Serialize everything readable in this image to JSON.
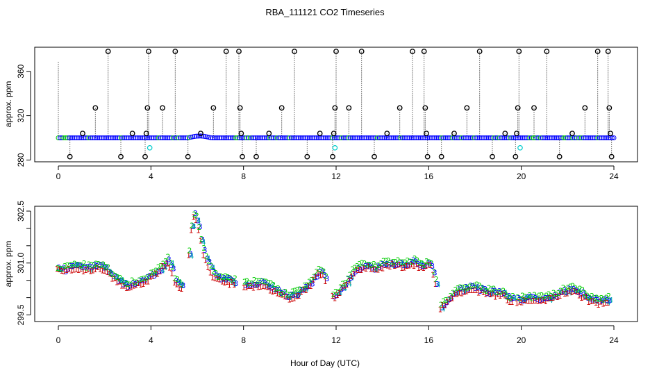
{
  "chart_data": [
    {
      "type": "scatter",
      "title": "RBA_111121  CO2 Timeseries",
      "xlabel": "",
      "ylabel": "approx. ppm",
      "xlim": [
        0,
        24
      ],
      "ylim": [
        279,
        378
      ],
      "xticks": [
        0,
        4,
        8,
        12,
        16,
        20,
        24
      ],
      "xtick_labels": [
        "0",
        "4",
        "8",
        "12",
        "16",
        "20",
        "24"
      ],
      "yticks": [
        280,
        320,
        360
      ],
      "ytick_labels": [
        "280",
        "320",
        "360"
      ],
      "baseline_level": 300,
      "outliers": [
        {
          "x": 0.5,
          "y": 283
        },
        {
          "x": 1.05,
          "y": 304
        },
        {
          "x": 1.6,
          "y": 327
        },
        {
          "x": 2.15,
          "y": 378
        },
        {
          "x": 2.7,
          "y": 283
        },
        {
          "x": 3.2,
          "y": 304
        },
        {
          "x": 3.75,
          "y": 283
        },
        {
          "x": 3.8,
          "y": 304
        },
        {
          "x": 3.85,
          "y": 327
        },
        {
          "x": 3.9,
          "y": 378
        },
        {
          "x": 4.5,
          "y": 327
        },
        {
          "x": 5.05,
          "y": 378
        },
        {
          "x": 5.6,
          "y": 283
        },
        {
          "x": 6.15,
          "y": 304
        },
        {
          "x": 6.7,
          "y": 327
        },
        {
          "x": 7.25,
          "y": 378
        },
        {
          "x": 7.8,
          "y": 378
        },
        {
          "x": 7.85,
          "y": 327
        },
        {
          "x": 7.9,
          "y": 304
        },
        {
          "x": 7.95,
          "y": 283
        },
        {
          "x": 8.55,
          "y": 283
        },
        {
          "x": 9.1,
          "y": 304
        },
        {
          "x": 9.65,
          "y": 327
        },
        {
          "x": 10.2,
          "y": 378
        },
        {
          "x": 10.75,
          "y": 283
        },
        {
          "x": 11.3,
          "y": 304
        },
        {
          "x": 11.85,
          "y": 283
        },
        {
          "x": 11.9,
          "y": 304
        },
        {
          "x": 11.95,
          "y": 327
        },
        {
          "x": 12.0,
          "y": 378
        },
        {
          "x": 12.55,
          "y": 327
        },
        {
          "x": 13.1,
          "y": 378
        },
        {
          "x": 13.65,
          "y": 283
        },
        {
          "x": 14.2,
          "y": 304
        },
        {
          "x": 14.75,
          "y": 327
        },
        {
          "x": 15.3,
          "y": 378
        },
        {
          "x": 15.8,
          "y": 378
        },
        {
          "x": 15.85,
          "y": 327
        },
        {
          "x": 15.9,
          "y": 304
        },
        {
          "x": 15.95,
          "y": 283
        },
        {
          "x": 16.55,
          "y": 283
        },
        {
          "x": 17.1,
          "y": 304
        },
        {
          "x": 17.65,
          "y": 327
        },
        {
          "x": 18.2,
          "y": 378
        },
        {
          "x": 18.75,
          "y": 283
        },
        {
          "x": 19.3,
          "y": 304
        },
        {
          "x": 19.75,
          "y": 283
        },
        {
          "x": 19.8,
          "y": 304
        },
        {
          "x": 19.85,
          "y": 327
        },
        {
          "x": 19.9,
          "y": 378
        },
        {
          "x": 20.55,
          "y": 327
        },
        {
          "x": 21.1,
          "y": 378
        },
        {
          "x": 21.65,
          "y": 283
        },
        {
          "x": 22.2,
          "y": 304
        },
        {
          "x": 22.75,
          "y": 327
        },
        {
          "x": 23.3,
          "y": 378
        },
        {
          "x": 23.75,
          "y": 378
        },
        {
          "x": 23.8,
          "y": 327
        },
        {
          "x": 23.85,
          "y": 304
        },
        {
          "x": 23.9,
          "y": 283
        }
      ],
      "calibration_points": [
        {
          "x": 3.95,
          "y": 291
        },
        {
          "x": 11.95,
          "y": 291
        },
        {
          "x": 19.95,
          "y": 291
        }
      ],
      "colors": {
        "outlier": "#000000",
        "baseline": "#0000ff",
        "baseline_alt": "#00cc00",
        "calibration": "#00cccc"
      }
    },
    {
      "type": "scatter",
      "title": "",
      "xlabel": "Hour of Day (UTC)",
      "ylabel": "approx. ppm",
      "xlim": [
        0,
        24
      ],
      "ylim": [
        299.35,
        302.6
      ],
      "xticks": [
        0,
        4,
        8,
        12,
        16,
        20,
        24
      ],
      "xtick_labels": [
        "0",
        "4",
        "8",
        "12",
        "16",
        "20",
        "24"
      ],
      "yticks": [
        299.5,
        300,
        300.5,
        301,
        301.5,
        302,
        302.5
      ],
      "ytick_labels": [
        "299.5",
        "",
        "",
        "301.0",
        "",
        "",
        "302.5"
      ],
      "series_markers": [
        "1",
        "2",
        "3",
        "4"
      ],
      "series_colors": [
        "#cc0000",
        "#00cc00",
        "#0000ff",
        "#00aaaa"
      ],
      "knots": [
        [
          0.0,
          300.85
        ],
        [
          0.3,
          300.8
        ],
        [
          0.7,
          300.92
        ],
        [
          1.0,
          300.9
        ],
        [
          1.3,
          300.85
        ],
        [
          1.8,
          300.95
        ],
        [
          2.1,
          300.85
        ],
        [
          2.5,
          300.55
        ],
        [
          3.0,
          300.35
        ],
        [
          3.5,
          300.45
        ],
        [
          4.0,
          300.6
        ],
        [
          4.4,
          300.8
        ],
        [
          4.75,
          301.1
        ],
        [
          4.95,
          300.85
        ],
        [
          5.1,
          300.45
        ],
        [
          5.4,
          300.35
        ],
        [
          5.55,
          300.45
        ],
        [
          5.7,
          301.3
        ],
        [
          5.85,
          302.45
        ],
        [
          6.05,
          302.2
        ],
        [
          6.35,
          301.2
        ],
        [
          6.8,
          300.6
        ],
        [
          7.2,
          300.55
        ],
        [
          7.65,
          300.45
        ],
        [
          7.9,
          300.35
        ],
        [
          8.4,
          300.4
        ],
        [
          8.9,
          300.45
        ],
        [
          9.5,
          300.2
        ],
        [
          9.9,
          300.05
        ],
        [
          10.3,
          300.1
        ],
        [
          10.6,
          300.25
        ],
        [
          10.9,
          300.4
        ],
        [
          11.3,
          300.75
        ],
        [
          11.55,
          300.7
        ],
        [
          11.7,
          300.1
        ],
        [
          12.0,
          300.05
        ],
        [
          12.5,
          300.45
        ],
        [
          12.8,
          300.8
        ],
        [
          13.3,
          300.95
        ],
        [
          13.7,
          300.85
        ],
        [
          14.0,
          300.95
        ],
        [
          14.5,
          301.0
        ],
        [
          15.0,
          300.95
        ],
        [
          15.4,
          301.05
        ],
        [
          15.8,
          300.9
        ],
        [
          16.1,
          301.05
        ],
        [
          16.3,
          300.6
        ],
        [
          16.55,
          299.75
        ],
        [
          16.8,
          299.9
        ],
        [
          17.3,
          300.2
        ],
        [
          17.8,
          300.3
        ],
        [
          18.2,
          300.25
        ],
        [
          18.7,
          300.15
        ],
        [
          19.2,
          300.15
        ],
        [
          19.6,
          299.95
        ],
        [
          19.9,
          299.95
        ],
        [
          20.3,
          300.0
        ],
        [
          20.9,
          299.95
        ],
        [
          21.5,
          300.05
        ],
        [
          21.9,
          300.2
        ],
        [
          22.3,
          300.25
        ],
        [
          22.7,
          300.1
        ],
        [
          23.1,
          299.95
        ],
        [
          23.5,
          299.9
        ],
        [
          23.8,
          299.95
        ]
      ]
    }
  ]
}
